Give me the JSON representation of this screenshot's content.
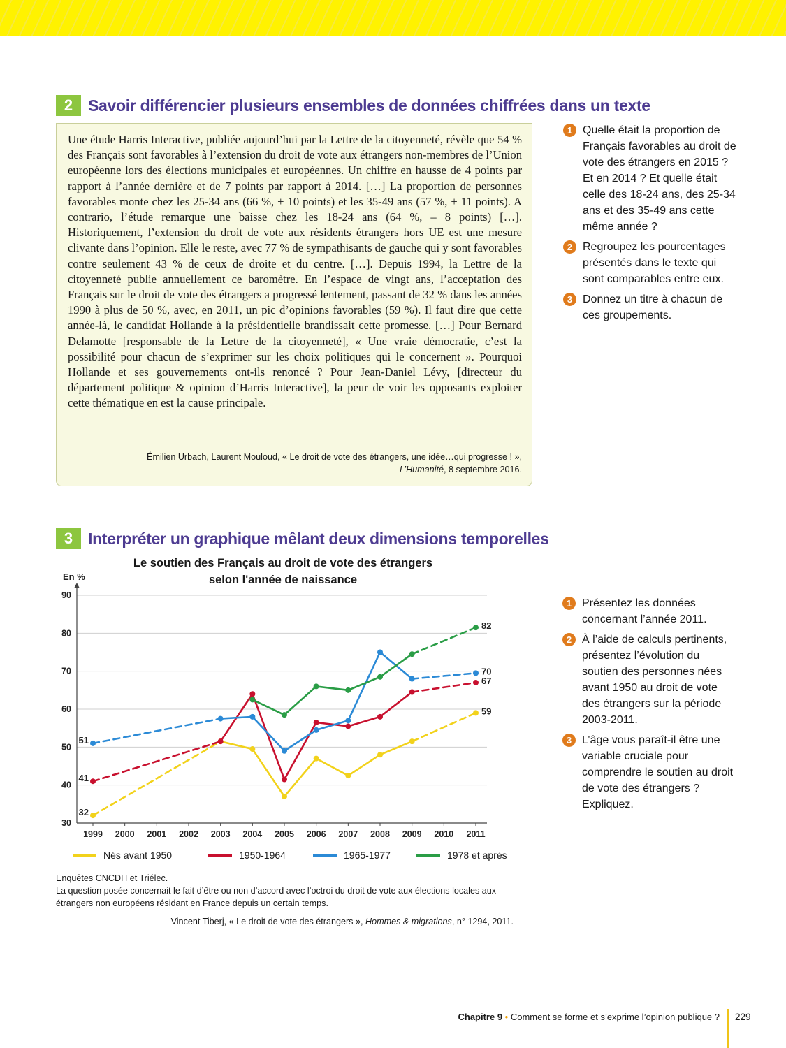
{
  "section2": {
    "number": "2",
    "title": "Savoir différencier plusieurs ensembles de données chiffrées dans un texte",
    "text": "Une étude Harris Interactive, publiée aujourd’hui par la Lettre de la citoyenneté, révèle que 54 % des Français sont favorables à l’extension du droit de vote aux étrangers non-membres de l’Union européenne lors des élections municipales et européennes. Un chiffre en hausse de 4 points par rapport à l’année dernière et de 7 points par rapport à 2014. […] La proportion de personnes favorables monte chez les 25-34 ans (66 %, + 10 points) et les 35-49 ans (57 %, + 11 points). A contrario, l’étude remarque une baisse chez les 18-24 ans (64 %, – 8 points) […]. Historiquement, l’extension du droit de vote aux résidents étrangers hors UE est une mesure clivante dans l’opinion. Elle le reste, avec 77 % de sympathisants de gauche qui y sont favorables contre seulement 43 % de ceux de droite et du centre. […]. Depuis 1994, la Lettre de la citoyenneté publie annuellement ce baromètre. En l’espace de vingt ans, l’acceptation des Français sur le droit de vote des étrangers a progressé lentement, passant de 32 % dans les années 1990 à plus de 50 %, avec, en 2011, un pic d’opinions favorables (59 %). Il faut dire que cette année-là, le candidat Hollande à la présidentielle brandissait cette promesse. […] Pour Bernard Delamotte [responsable de la Lettre de la citoyenneté], « Une vraie démocratie, c’est la possibilité pour chacun de s’exprimer sur les choix politiques qui le concernent ». Pourquoi Hollande et ses gouvernements ont-ils renoncé ? Pour Jean-Daniel Lévy, [directeur du département politique & opinion d’Harris Interactive], la peur de voir les opposants exploiter cette thématique en est la cause principale.",
    "source_line1": "Émilien Urbach, Laurent Mouloud, « Le droit de vote des étrangers, une idée…qui progresse ! »,",
    "source_journal": "L’Humanité",
    "source_date": ", 8 septembre 2016.",
    "questions": [
      {
        "num": "1",
        "text": "Quelle était la proportion de Français favorables au droit de vote des étrangers en 2015 ? Et en 2014 ? Et quelle était celle des 18-24 ans, des 25-34 ans et des 35-49 ans cette même année ?"
      },
      {
        "num": "2",
        "text": "Regroupez les pourcentages présentés dans le texte qui sont comparables entre eux."
      },
      {
        "num": "3",
        "text": "Donnez un titre à chacun de ces groupements."
      }
    ]
  },
  "section3": {
    "number": "3",
    "title": "Interpréter un graphique mêlant deux dimensions temporelles",
    "questions": [
      {
        "num": "1",
        "text": "Présentez les données concernant l’année 2011."
      },
      {
        "num": "2",
        "text": "À l’aide de calculs pertinents, présentez l’évolution du soutien des personnes nées avant 1950 au droit de vote des étrangers sur la période 2003-2011."
      },
      {
        "num": "3",
        "text": "L’âge vous paraît-il être une variable cruciale pour comprendre le soutien au droit de vote des étrangers ? Expliquez."
      }
    ],
    "note_source": "Enquêtes CNCDH et Triélec.",
    "note_text": "La question posée concernait le fait d’être ou non d’accord avec l’octroi du droit de vote aux élections locales aux étrangers non européens résidant en France depuis un certain temps.",
    "cite_author": "Vincent Tiberj, « Le droit de vote des étrangers », ",
    "cite_journal": "Hommes & migrations",
    "cite_rest": ", n° 1294, 2011."
  },
  "chart_data": {
    "type": "line",
    "title_line1": "Le soutien des Français au droit de vote des étrangers",
    "title_line2": "selon l'année de naissance",
    "ylabel": "En %",
    "ylim": [
      30,
      90
    ],
    "yticks": [
      30,
      40,
      50,
      60,
      70,
      80,
      90
    ],
    "x": [
      1999,
      2000,
      2001,
      2002,
      2003,
      2004,
      2005,
      2006,
      2007,
      2008,
      2009,
      2010,
      2011
    ],
    "grid": "horizontal",
    "legend_position": "bottom",
    "dashed_segments_note": "dashed between 1999 and 2003 and between 2009 and 2011",
    "series": [
      {
        "name": "Nés avant 1950",
        "color": "#f2d21b",
        "points": [
          [
            1999,
            32
          ],
          [
            2003,
            51.5
          ],
          [
            2004,
            49.5
          ],
          [
            2005,
            37
          ],
          [
            2006,
            47
          ],
          [
            2007,
            42.5
          ],
          [
            2008,
            48
          ],
          [
            2009,
            51.5
          ],
          [
            2011,
            59
          ]
        ],
        "dashed": [
          [
            1999,
            2003
          ],
          [
            2009,
            2011
          ]
        ],
        "labels": {
          "1999": "32",
          "2011": "59"
        }
      },
      {
        "name": "1950-1964",
        "color": "#c8102e",
        "points": [
          [
            1999,
            41
          ],
          [
            2003,
            51.5
          ],
          [
            2004,
            64
          ],
          [
            2005,
            41.5
          ],
          [
            2006,
            56.5
          ],
          [
            2007,
            55.5
          ],
          [
            2008,
            58
          ],
          [
            2009,
            64.5
          ],
          [
            2011,
            67
          ]
        ],
        "dashed": [
          [
            1999,
            2003
          ],
          [
            2009,
            2011
          ]
        ],
        "labels": {
          "1999": "41",
          "2011": "67"
        }
      },
      {
        "name": "1965-1977",
        "color": "#2b8ad6",
        "points": [
          [
            1999,
            51
          ],
          [
            2003,
            57.5
          ],
          [
            2004,
            58
          ],
          [
            2005,
            49
          ],
          [
            2006,
            54.5
          ],
          [
            2007,
            57
          ],
          [
            2008,
            75
          ],
          [
            2009,
            68
          ],
          [
            2011,
            69.5
          ]
        ],
        "dashed": [
          [
            1999,
            2003
          ],
          [
            2009,
            2011
          ]
        ],
        "labels": {
          "1999": "51",
          "2011": "70"
        }
      },
      {
        "name": "1978 et après",
        "color": "#2a9d46",
        "points": [
          [
            2004,
            62.5
          ],
          [
            2005,
            58.5
          ],
          [
            2006,
            66
          ],
          [
            2007,
            65
          ],
          [
            2008,
            68.5
          ],
          [
            2009,
            74.5
          ],
          [
            2011,
            81.5
          ]
        ],
        "dashed": [
          [
            2009,
            2011
          ]
        ],
        "labels": {
          "2011": "82"
        }
      }
    ]
  },
  "footer": {
    "chapter": "Chapitre 9",
    "separator": " • ",
    "chapter_title": "Comment se forme et s’exprime l’opinion publique ?",
    "page": "229"
  }
}
